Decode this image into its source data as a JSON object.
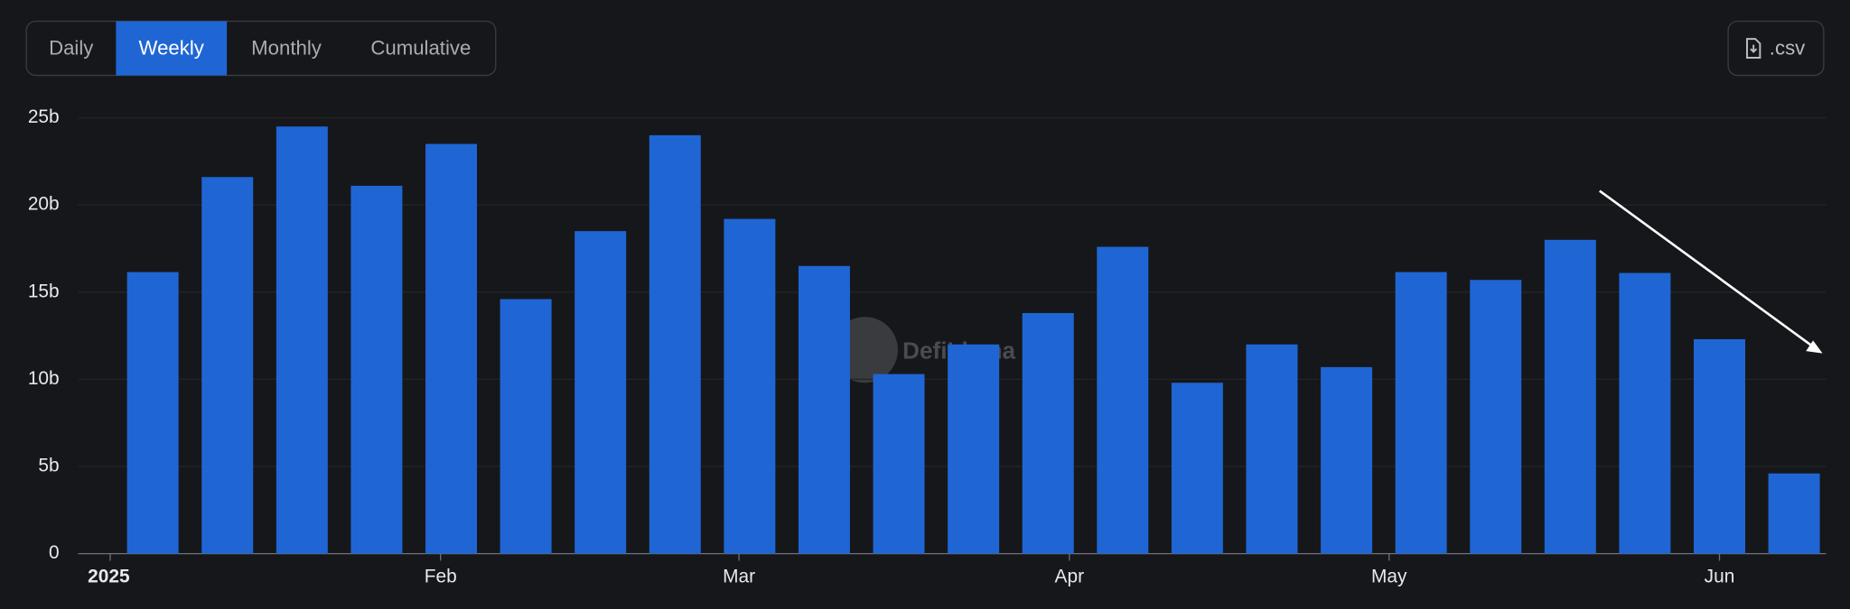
{
  "tabs": [
    "Daily",
    "Weekly",
    "Monthly",
    "Cumulative"
  ],
  "active_tab": "Weekly",
  "export_button": ".csv",
  "watermark": "DefiLlama",
  "chart_data": {
    "type": "bar",
    "x": [
      4,
      11,
      18,
      25,
      32,
      39,
      46,
      53,
      60,
      67,
      74,
      81,
      88,
      95,
      102,
      109,
      116,
      123,
      130,
      137,
      144,
      151,
      158
    ],
    "series": [
      {
        "color": "#1f66d4",
        "values": [
          16.15,
          21.6,
          24.5,
          21.1,
          23.5,
          14.6,
          18.5,
          24.0,
          19.2,
          16.5,
          10.3,
          12.0,
          13.8,
          17.6,
          9.8,
          12.0,
          10.7,
          16.15,
          15.7,
          18.0,
          16.1,
          12.3,
          4.6
        ]
      }
    ],
    "xlim": [
      -3,
      161
    ],
    "xticks": [
      {
        "value": 0,
        "label": "2025"
      },
      {
        "value": 31,
        "label": "Feb"
      },
      {
        "value": 59,
        "label": "Mar"
      },
      {
        "value": 90,
        "label": "Apr"
      },
      {
        "value": 120,
        "label": "May"
      },
      {
        "value": 151,
        "label": "Jun"
      }
    ],
    "ylim": [
      0,
      25
    ],
    "yticks": [
      0,
      {
        "value": 5,
        "label": "5b"
      },
      {
        "value": 10,
        "label": "10b"
      },
      {
        "value": 15,
        "label": "15b"
      },
      {
        "value": 20,
        "label": "20b"
      },
      {
        "value": 25,
        "label": "25b"
      }
    ],
    "grid": true
  }
}
